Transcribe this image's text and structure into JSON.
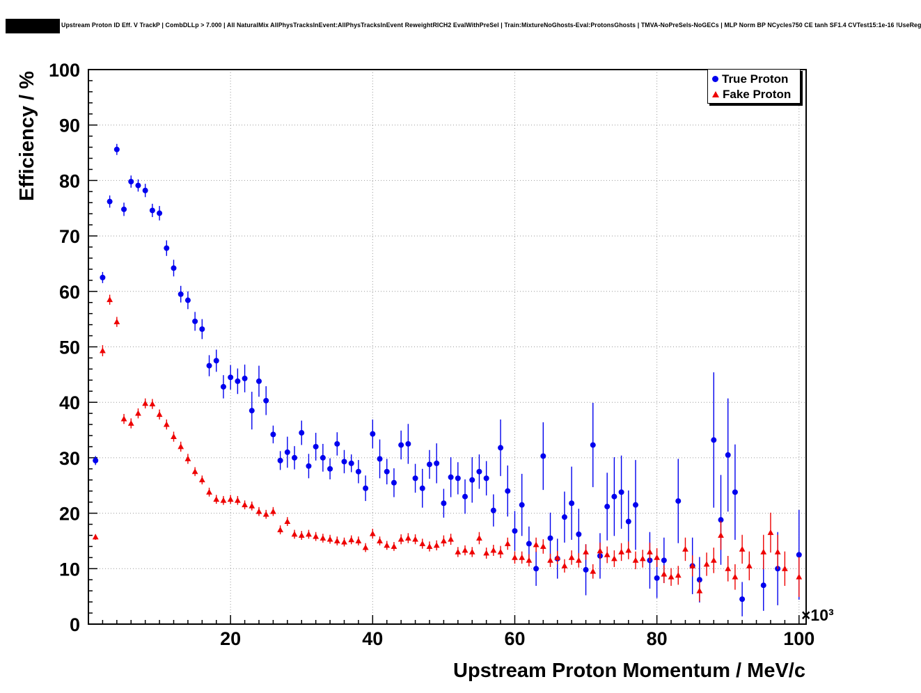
{
  "title": "Upstream Proton ID Eff. V TrackP | CombDLLp > 7.000 | All NaturalMix AllPhysTracksInEvent:AllPhysTracksInEvent ReweightRICH2 EvalWithPreSel | Train:MixtureNoGhosts-Eval:ProtonsGhosts | TMVA-NoPreSels-NoGECs | MLP Norm BP NCycles750 CE tanh SF1.4 CVTest15:1e-16 !UseReg",
  "chart_data": {
    "type": "scatter",
    "title": "Upstream Proton ID Eff. V TrackP",
    "xlabel": "Upstream Proton Momentum / MeV/c",
    "ylabel": "Efficiency / %",
    "x_exponent": "×10³",
    "xlim": [
      0,
      101
    ],
    "ylim": [
      0,
      100
    ],
    "x_ticks": [
      20,
      40,
      60,
      80,
      100
    ],
    "y_ticks": [
      0,
      10,
      20,
      30,
      40,
      50,
      60,
      70,
      80,
      90,
      100
    ],
    "grid": true,
    "grid_color": "#999999",
    "legend": {
      "position": "top-right",
      "entries": [
        {
          "label": "True Proton",
          "color": "#0000ee",
          "marker": "circle"
        },
        {
          "label": "Fake Proton",
          "color": "#ee0000",
          "marker": "triangle"
        }
      ]
    },
    "series": [
      {
        "name": "True Proton",
        "color": "#0000ee",
        "marker": "circle",
        "points": [
          [
            1,
            29.5,
            0.8
          ],
          [
            2,
            62.5,
            1.0
          ],
          [
            3,
            76.2,
            1.1
          ],
          [
            4,
            85.6,
            1.0
          ],
          [
            5,
            74.8,
            1.2
          ],
          [
            6,
            79.8,
            1.1
          ],
          [
            7,
            79.1,
            1.1
          ],
          [
            8,
            78.2,
            1.2
          ],
          [
            9,
            74.6,
            1.2
          ],
          [
            10,
            74.1,
            1.3
          ],
          [
            11,
            67.8,
            1.4
          ],
          [
            12,
            64.2,
            1.5
          ],
          [
            13,
            59.5,
            1.5
          ],
          [
            14,
            58.4,
            1.6
          ],
          [
            15,
            54.6,
            1.7
          ],
          [
            16,
            53.2,
            1.8
          ],
          [
            17,
            46.6,
            1.9
          ],
          [
            18,
            47.5,
            2.0
          ],
          [
            19,
            42.8,
            2.1
          ],
          [
            20,
            44.5,
            2.2
          ],
          [
            21,
            43.8,
            2.3
          ],
          [
            22,
            44.3,
            2.5
          ],
          [
            23,
            38.5,
            3.4
          ],
          [
            24,
            43.8,
            2.8
          ],
          [
            25,
            40.3,
            2.6
          ],
          [
            26,
            34.2,
            1.6
          ],
          [
            27,
            29.5,
            1.7
          ],
          [
            28,
            31.0,
            2.8
          ],
          [
            29,
            30.0,
            2.1
          ],
          [
            30,
            34.5,
            2.2
          ],
          [
            31,
            28.5,
            2.2
          ],
          [
            32,
            32.0,
            2.5
          ],
          [
            33,
            30.0,
            2.5
          ],
          [
            34,
            28.0,
            1.9
          ],
          [
            35,
            32.5,
            2.1
          ],
          [
            36,
            29.3,
            2.1
          ],
          [
            37,
            29.0,
            1.6
          ],
          [
            38,
            27.5,
            2.1
          ],
          [
            39,
            24.5,
            2.3
          ],
          [
            40,
            34.3,
            2.6
          ],
          [
            41,
            29.8,
            3.5
          ],
          [
            42,
            27.5,
            2.3
          ],
          [
            43,
            25.5,
            2.6
          ],
          [
            44,
            32.3,
            2.6
          ],
          [
            45,
            32.5,
            3.6
          ],
          [
            46,
            26.3,
            2.6
          ],
          [
            47,
            24.5,
            3.5
          ],
          [
            48,
            28.8,
            2.6
          ],
          [
            49,
            29.0,
            3.6
          ],
          [
            50,
            21.8,
            2.6
          ],
          [
            51,
            26.5,
            3.6
          ],
          [
            52,
            26.3,
            2.9
          ],
          [
            53,
            23.0,
            3.1
          ],
          [
            54,
            26.0,
            4.1
          ],
          [
            55,
            27.5,
            3.1
          ],
          [
            56,
            26.3,
            3.1
          ],
          [
            57,
            20.5,
            2.9
          ],
          [
            58,
            31.8,
            5.1
          ],
          [
            59,
            24.0,
            4.6
          ],
          [
            60,
            16.8,
            3.6
          ],
          [
            61,
            21.5,
            5.6
          ],
          [
            62,
            14.5,
            3.1
          ],
          [
            63,
            10.0,
            3.1
          ],
          [
            64,
            30.3,
            6.1
          ],
          [
            65,
            15.5,
            4.6
          ],
          [
            66,
            11.8,
            3.6
          ],
          [
            67,
            19.3,
            4.6
          ],
          [
            68,
            21.8,
            6.6
          ],
          [
            69,
            16.2,
            4.6
          ],
          [
            70,
            9.8,
            4.6
          ],
          [
            71,
            32.3,
            7.6
          ],
          [
            72,
            12.3,
            4.1
          ],
          [
            73,
            21.2,
            6.1
          ],
          [
            74,
            23.0,
            7.1
          ],
          [
            75,
            23.8,
            6.6
          ],
          [
            76,
            18.5,
            5.6
          ],
          [
            77,
            21.5,
            8.1
          ],
          [
            79,
            11.5,
            5.1
          ],
          [
            80,
            8.3,
            3.6
          ],
          [
            81,
            11.5,
            4.1
          ],
          [
            83,
            22.2,
            7.6
          ],
          [
            85,
            10.5,
            5.1
          ],
          [
            86,
            8.0,
            4.1
          ],
          [
            88,
            33.2,
            12.2
          ],
          [
            89,
            18.8,
            8.1
          ],
          [
            90,
            30.5,
            10.2
          ],
          [
            91,
            23.8,
            8.6
          ],
          [
            92,
            4.5,
            3.1
          ],
          [
            95,
            7.0,
            4.6
          ],
          [
            97,
            10.0,
            6.6
          ],
          [
            100,
            12.5,
            8.1
          ]
        ]
      },
      {
        "name": "Fake Proton",
        "color": "#ee0000",
        "marker": "triangle",
        "points": [
          [
            1,
            15.7,
            0.5
          ],
          [
            2,
            49.3,
            1.0
          ],
          [
            3,
            58.5,
            0.9
          ],
          [
            4,
            54.5,
            0.9
          ],
          [
            5,
            37.0,
            0.9
          ],
          [
            6,
            36.2,
            0.9
          ],
          [
            7,
            38.0,
            0.9
          ],
          [
            8,
            39.8,
            0.9
          ],
          [
            9,
            39.7,
            0.9
          ],
          [
            10,
            37.8,
            0.9
          ],
          [
            11,
            36.0,
            0.9
          ],
          [
            12,
            33.8,
            0.9
          ],
          [
            13,
            32.0,
            0.9
          ],
          [
            14,
            29.8,
            0.9
          ],
          [
            15,
            27.5,
            0.8
          ],
          [
            16,
            26.0,
            0.8
          ],
          [
            17,
            23.8,
            0.8
          ],
          [
            18,
            22.5,
            0.8
          ],
          [
            19,
            22.3,
            0.8
          ],
          [
            20,
            22.5,
            0.8
          ],
          [
            21,
            22.3,
            0.8
          ],
          [
            22,
            21.5,
            0.8
          ],
          [
            23,
            21.3,
            0.8
          ],
          [
            24,
            20.3,
            0.8
          ],
          [
            25,
            19.8,
            0.8
          ],
          [
            26,
            20.3,
            0.8
          ],
          [
            27,
            17.0,
            0.8
          ],
          [
            28,
            18.5,
            0.8
          ],
          [
            29,
            16.2,
            0.8
          ],
          [
            30,
            16.0,
            0.8
          ],
          [
            31,
            16.2,
            0.8
          ],
          [
            32,
            15.8,
            0.8
          ],
          [
            33,
            15.5,
            0.8
          ],
          [
            34,
            15.3,
            0.8
          ],
          [
            35,
            15.0,
            0.8
          ],
          [
            36,
            14.8,
            0.8
          ],
          [
            37,
            15.2,
            0.8
          ],
          [
            38,
            15.0,
            0.8
          ],
          [
            39,
            13.8,
            0.8
          ],
          [
            40,
            16.3,
            0.9
          ],
          [
            41,
            15.0,
            0.8
          ],
          [
            42,
            14.2,
            0.8
          ],
          [
            43,
            14.0,
            0.8
          ],
          [
            44,
            15.3,
            0.9
          ],
          [
            45,
            15.5,
            0.9
          ],
          [
            46,
            15.3,
            0.9
          ],
          [
            47,
            14.5,
            0.9
          ],
          [
            48,
            14.0,
            0.9
          ],
          [
            49,
            14.2,
            0.9
          ],
          [
            50,
            15.0,
            1.0
          ],
          [
            51,
            15.3,
            1.0
          ],
          [
            52,
            13.0,
            0.9
          ],
          [
            53,
            13.3,
            0.9
          ],
          [
            54,
            13.0,
            0.9
          ],
          [
            55,
            15.5,
            1.1
          ],
          [
            56,
            12.8,
            1.0
          ],
          [
            57,
            13.3,
            1.0
          ],
          [
            58,
            13.0,
            1.1
          ],
          [
            59,
            14.5,
            1.1
          ],
          [
            60,
            12.0,
            1.1
          ],
          [
            61,
            12.0,
            1.1
          ],
          [
            62,
            11.5,
            1.1
          ],
          [
            63,
            14.3,
            1.3
          ],
          [
            64,
            14.0,
            1.3
          ],
          [
            65,
            11.5,
            1.2
          ],
          [
            66,
            12.0,
            1.2
          ],
          [
            67,
            10.5,
            1.2
          ],
          [
            68,
            12.0,
            1.3
          ],
          [
            69,
            11.5,
            1.3
          ],
          [
            70,
            13.0,
            1.4
          ],
          [
            71,
            9.5,
            1.3
          ],
          [
            72,
            13.2,
            1.5
          ],
          [
            73,
            12.5,
            1.5
          ],
          [
            74,
            11.8,
            1.5
          ],
          [
            75,
            13.0,
            1.6
          ],
          [
            76,
            13.3,
            1.6
          ],
          [
            77,
            11.5,
            1.6
          ],
          [
            78,
            11.8,
            1.6
          ],
          [
            79,
            13.0,
            1.7
          ],
          [
            80,
            12.0,
            1.7
          ],
          [
            81,
            9.0,
            1.6
          ],
          [
            82,
            8.5,
            1.6
          ],
          [
            83,
            8.8,
            1.7
          ],
          [
            84,
            13.5,
            2.1
          ],
          [
            85,
            10.5,
            1.9
          ],
          [
            86,
            6.0,
            1.9
          ],
          [
            87,
            10.8,
            2.1
          ],
          [
            88,
            11.5,
            2.3
          ],
          [
            89,
            16.0,
            2.6
          ],
          [
            90,
            10.0,
            2.3
          ],
          [
            91,
            8.5,
            2.3
          ],
          [
            92,
            13.5,
            2.6
          ],
          [
            93,
            10.5,
            2.6
          ],
          [
            95,
            13.0,
            3.1
          ],
          [
            96,
            16.5,
            3.6
          ],
          [
            97,
            13.0,
            3.1
          ],
          [
            98,
            10.0,
            3.1
          ],
          [
            100,
            8.5,
            3.6
          ]
        ]
      }
    ]
  }
}
